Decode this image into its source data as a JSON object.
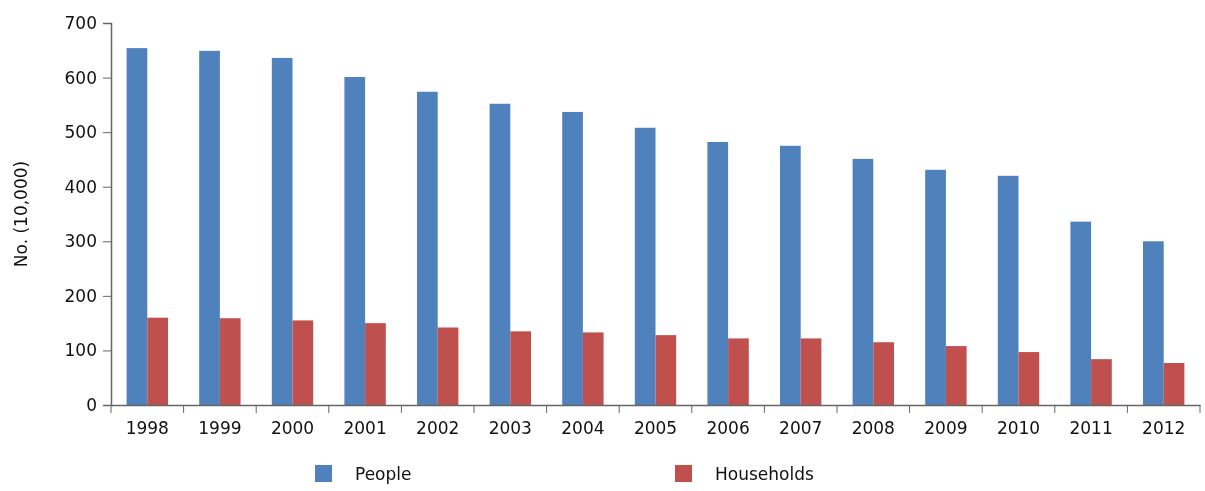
{
  "chart_data": {
    "type": "bar",
    "ylabel": "No. (10,000)",
    "categories": [
      "1998",
      "1999",
      "2000",
      "2001",
      "2002",
      "2003",
      "2004",
      "2005",
      "2006",
      "2007",
      "2008",
      "2009",
      "2010",
      "2011",
      "2012"
    ],
    "series": [
      {
        "name": "People",
        "color": "#4f81bd",
        "values": [
          654,
          649,
          636,
          601,
          574,
          552,
          537,
          508,
          482,
          475,
          451,
          431,
          420,
          336,
          300
        ]
      },
      {
        "name": "Households",
        "color": "#c0504d",
        "values": [
          160,
          159,
          155,
          150,
          142,
          135,
          133,
          128,
          122,
          122,
          115,
          108,
          97,
          84,
          77
        ]
      }
    ],
    "ylim": [
      0,
      700
    ],
    "yticks": [
      0,
      100,
      200,
      300,
      400,
      500,
      600,
      700
    ],
    "grid": false,
    "legend": "bottom"
  }
}
